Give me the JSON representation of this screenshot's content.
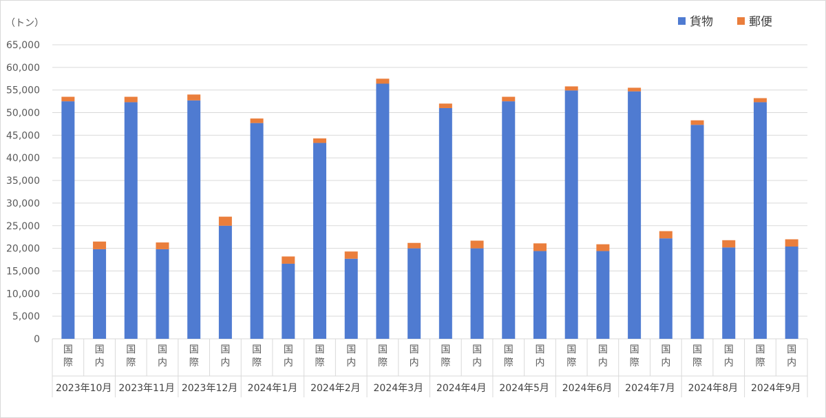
{
  "chart_data": {
    "type": "bar",
    "stacked": true,
    "unit_label": "（トン）",
    "ylim": [
      0,
      65000
    ],
    "yticks": [
      "0",
      "5,000",
      "10,000",
      "15,000",
      "20,000",
      "25,000",
      "30,000",
      "35,000",
      "40,000",
      "45,000",
      "50,000",
      "55,000",
      "60,000",
      "65,000"
    ],
    "grid": true,
    "legend_position": "top-right",
    "series_names": [
      "貨物",
      "郵便"
    ],
    "colors": {
      "cargo": "#4f7bd1",
      "mail": "#ea7e3c"
    },
    "categories": [
      {
        "month": "2023年10月",
        "items": [
          {
            "label": "国際",
            "cargo": 52500,
            "mail": 1000
          },
          {
            "label": "国内",
            "cargo": 19800,
            "mail": 1700
          }
        ]
      },
      {
        "month": "2023年11月",
        "items": [
          {
            "label": "国際",
            "cargo": 52300,
            "mail": 1200
          },
          {
            "label": "国内",
            "cargo": 19800,
            "mail": 1500
          }
        ]
      },
      {
        "month": "2023年12月",
        "items": [
          {
            "label": "国際",
            "cargo": 52700,
            "mail": 1300
          },
          {
            "label": "国内",
            "cargo": 25000,
            "mail": 2000
          }
        ]
      },
      {
        "month": "2024年1月",
        "items": [
          {
            "label": "国際",
            "cargo": 47700,
            "mail": 1000
          },
          {
            "label": "国内",
            "cargo": 16600,
            "mail": 1600
          }
        ]
      },
      {
        "month": "2024年2月",
        "items": [
          {
            "label": "国際",
            "cargo": 43300,
            "mail": 1000
          },
          {
            "label": "国内",
            "cargo": 17700,
            "mail": 1600
          }
        ]
      },
      {
        "month": "2024年3月",
        "items": [
          {
            "label": "国際",
            "cargo": 56400,
            "mail": 1100
          },
          {
            "label": "国内",
            "cargo": 20000,
            "mail": 1200
          }
        ]
      },
      {
        "month": "2024年4月",
        "items": [
          {
            "label": "国際",
            "cargo": 51000,
            "mail": 1000
          },
          {
            "label": "国内",
            "cargo": 20000,
            "mail": 1700
          }
        ]
      },
      {
        "month": "2024年5月",
        "items": [
          {
            "label": "国際",
            "cargo": 52500,
            "mail": 1000
          },
          {
            "label": "国内",
            "cargo": 19400,
            "mail": 1700
          }
        ]
      },
      {
        "month": "2024年6月",
        "items": [
          {
            "label": "国際",
            "cargo": 54900,
            "mail": 900
          },
          {
            "label": "国内",
            "cargo": 19400,
            "mail": 1500
          }
        ]
      },
      {
        "month": "2024年7月",
        "items": [
          {
            "label": "国際",
            "cargo": 54700,
            "mail": 800
          },
          {
            "label": "国内",
            "cargo": 22200,
            "mail": 1600
          }
        ]
      },
      {
        "month": "2024年8月",
        "items": [
          {
            "label": "国際",
            "cargo": 47300,
            "mail": 1000
          },
          {
            "label": "国内",
            "cargo": 20200,
            "mail": 1600
          }
        ]
      },
      {
        "month": "2024年9月",
        "items": [
          {
            "label": "国際",
            "cargo": 52300,
            "mail": 900
          },
          {
            "label": "国内",
            "cargo": 20400,
            "mail": 1600
          }
        ]
      }
    ]
  }
}
